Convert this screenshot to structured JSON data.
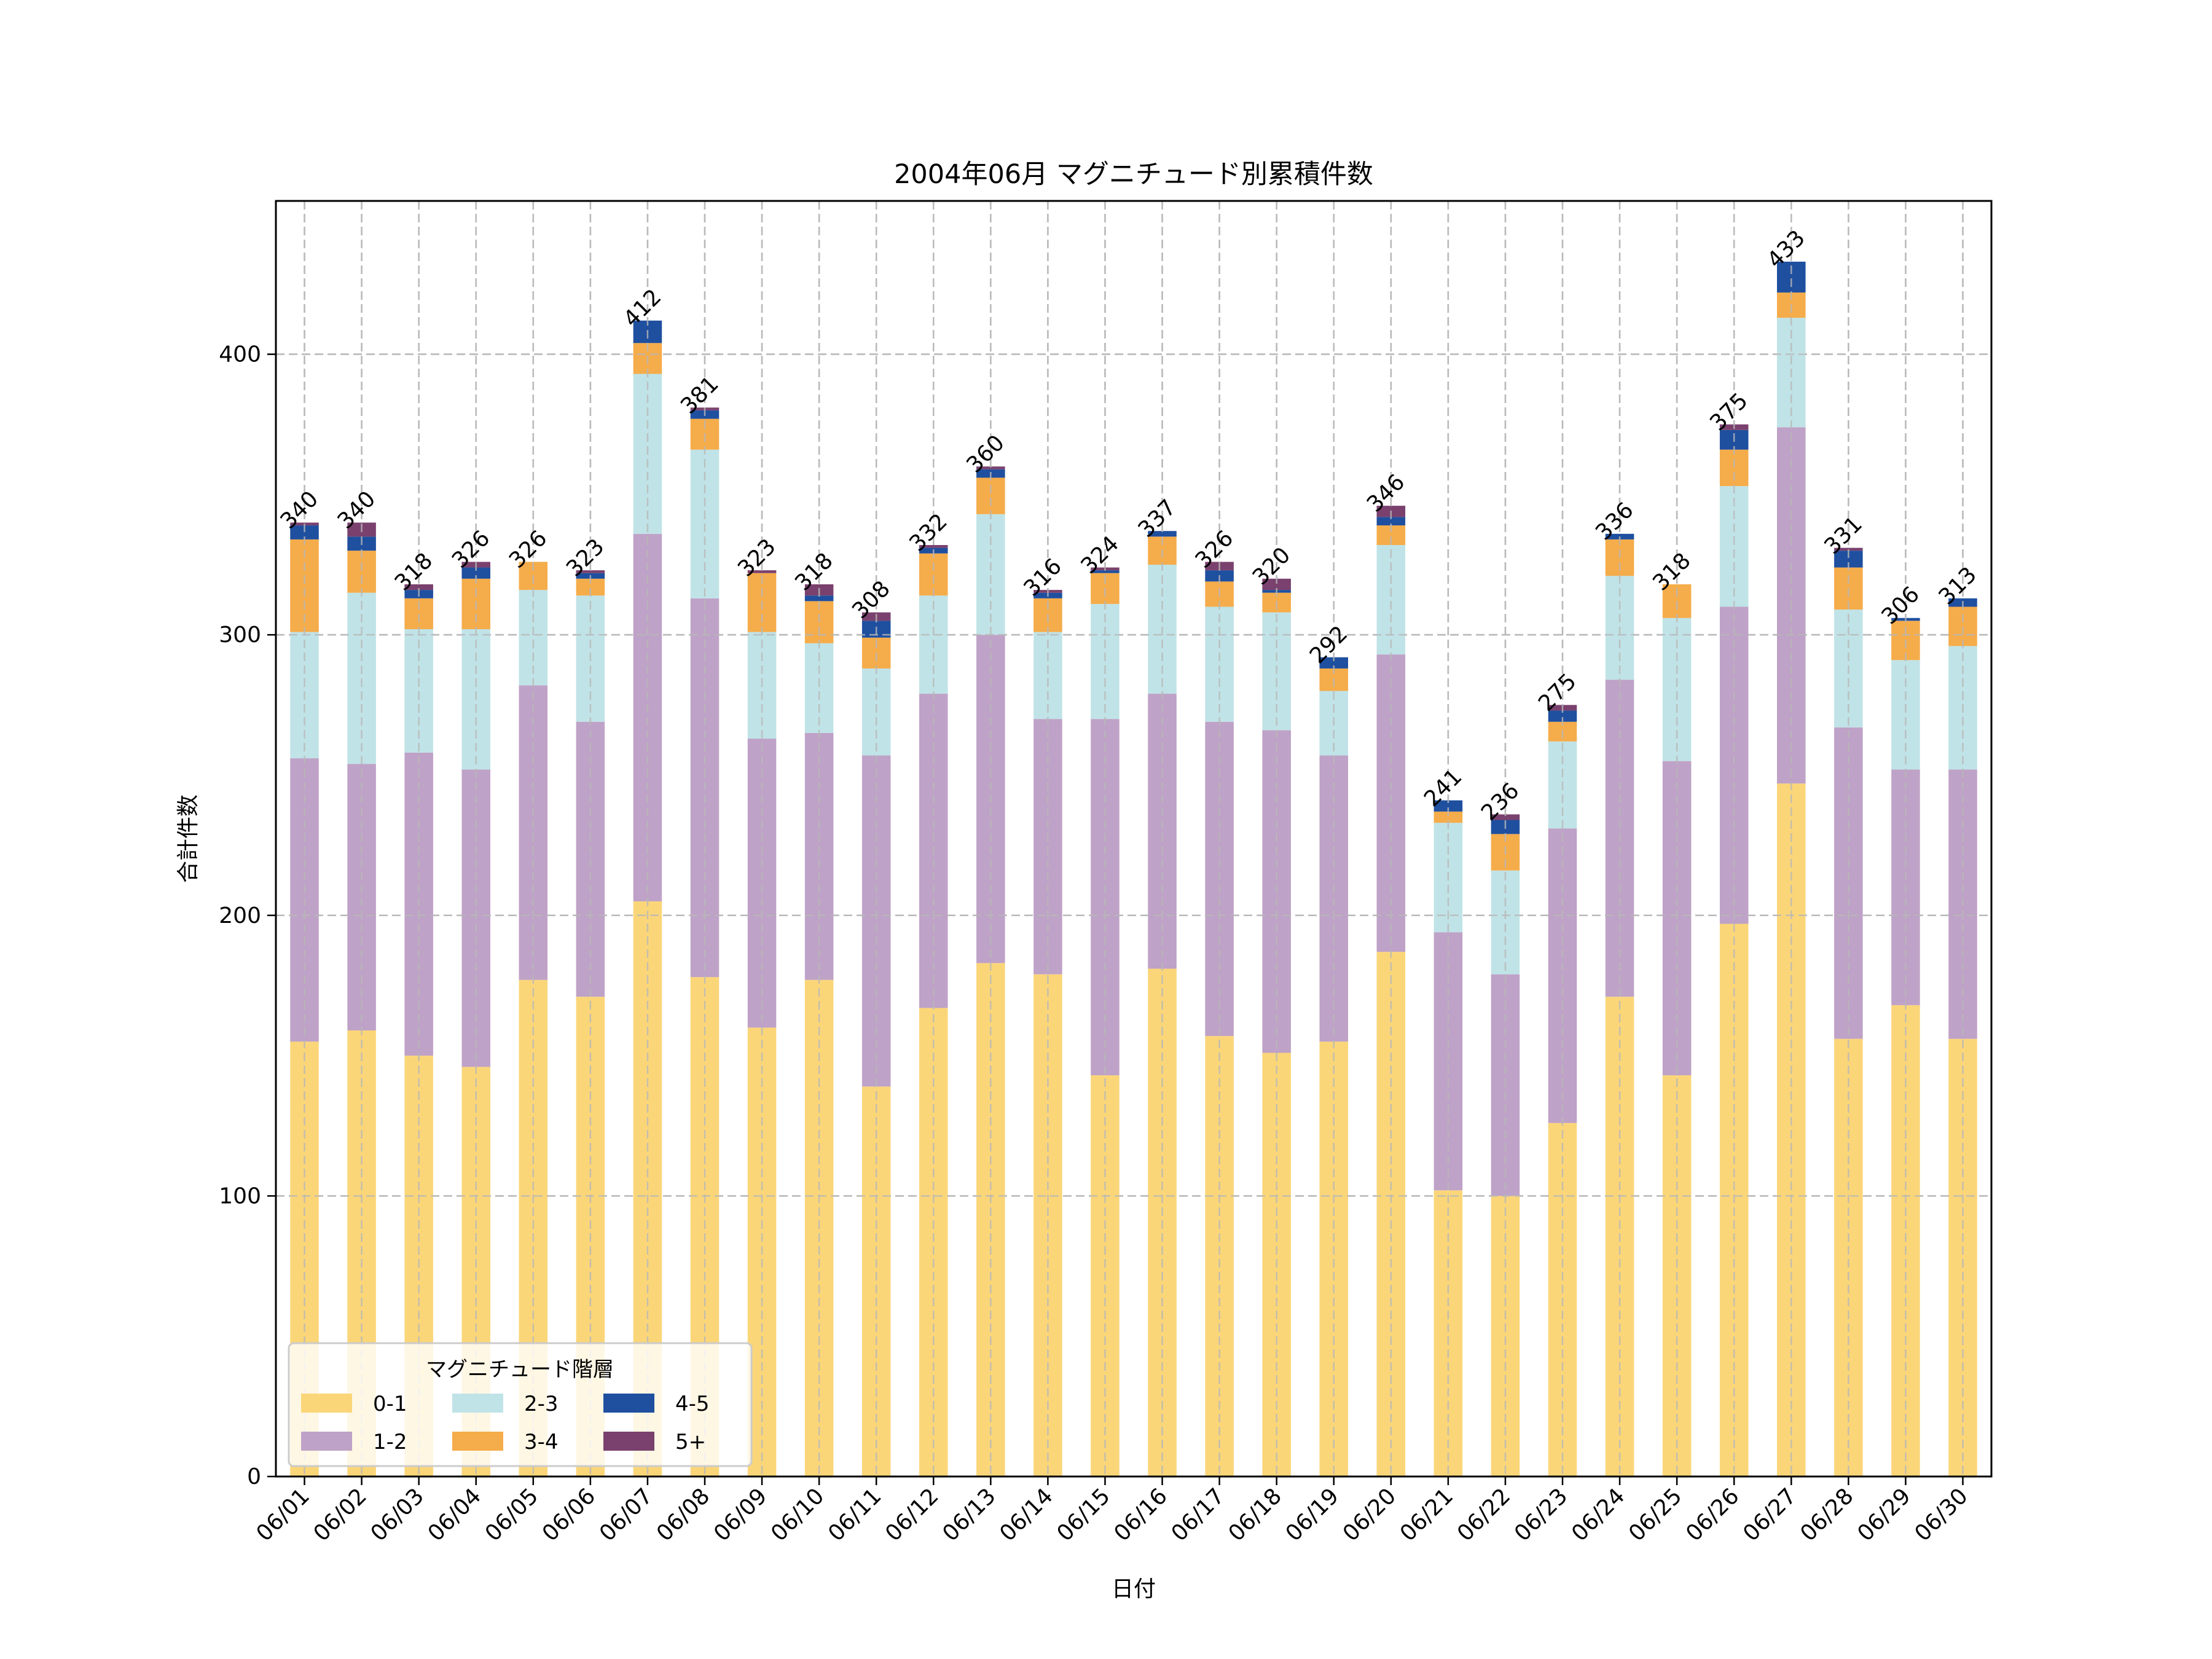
{
  "chart_data": {
    "type": "bar",
    "stacked": true,
    "title": "2004年06月 マグニチュード別累積件数",
    "xlabel": "日付",
    "ylabel": "合計件数",
    "ylim": [
      0,
      454.65
    ],
    "yticks": [
      0,
      100,
      200,
      300,
      400
    ],
    "grid": true,
    "legend": {
      "title": "マグニチュード階層",
      "placement": "lower-left",
      "columns": 3
    },
    "categories": [
      "06/01",
      "06/02",
      "06/03",
      "06/04",
      "06/05",
      "06/06",
      "06/07",
      "06/08",
      "06/09",
      "06/10",
      "06/11",
      "06/12",
      "06/13",
      "06/14",
      "06/15",
      "06/16",
      "06/17",
      "06/18",
      "06/19",
      "06/20",
      "06/21",
      "06/22",
      "06/23",
      "06/24",
      "06/25",
      "06/26",
      "06/27",
      "06/28",
      "06/29",
      "06/30"
    ],
    "series": [
      {
        "name": "0-1",
        "color": "#FBD679",
        "values": [
          155,
          159,
          150,
          146,
          177,
          171,
          205,
          178,
          160,
          177,
          139,
          167,
          183,
          179,
          143,
          181,
          157,
          151,
          155,
          187,
          102,
          100,
          126,
          171,
          143,
          197,
          247,
          156,
          168,
          156
        ]
      },
      {
        "name": "1-2",
        "color": "#BFA2C7",
        "values": [
          101,
          95,
          108,
          106,
          105,
          98,
          131,
          135,
          103,
          88,
          118,
          112,
          117,
          91,
          127,
          98,
          112,
          115,
          102,
          106,
          92,
          79,
          105,
          113,
          112,
          113,
          127,
          111,
          84,
          96
        ]
      },
      {
        "name": "2-3",
        "color": "#C0E3E7",
        "values": [
          45,
          61,
          44,
          50,
          34,
          45,
          57,
          53,
          38,
          32,
          31,
          35,
          43,
          31,
          41,
          46,
          41,
          42,
          23,
          39,
          39,
          37,
          31,
          37,
          51,
          43,
          39,
          42,
          39,
          44
        ]
      },
      {
        "name": "3-4",
        "color": "#F5AC4A",
        "values": [
          33,
          15,
          11,
          18,
          10,
          6,
          11,
          11,
          21,
          15,
          11,
          15,
          13,
          12,
          11,
          10,
          9,
          7,
          8,
          7,
          4,
          13,
          7,
          13,
          12,
          13,
          9,
          15,
          14,
          14
        ]
      },
      {
        "name": "4-5",
        "color": "#1F4F9F",
        "values": [
          5,
          5,
          3,
          4,
          0,
          2,
          8,
          3,
          0,
          2,
          6,
          2,
          3,
          2,
          1,
          2,
          4,
          1,
          4,
          3,
          4,
          5,
          4,
          2,
          0,
          7,
          11,
          6,
          1,
          3
        ]
      },
      {
        "name": "5+",
        "color": "#7A416E",
        "values": [
          1,
          5,
          2,
          2,
          0,
          1,
          0,
          1,
          1,
          4,
          3,
          1,
          1,
          1,
          1,
          0,
          3,
          4,
          0,
          4,
          0,
          2,
          2,
          0,
          0,
          2,
          0,
          1,
          0,
          0
        ]
      }
    ],
    "totals": [
      340,
      340,
      318,
      326,
      326,
      323,
      412,
      381,
      323,
      318,
      308,
      332,
      360,
      316,
      324,
      337,
      326,
      320,
      292,
      346,
      241,
      236,
      275,
      336,
      318,
      375,
      433,
      331,
      306,
      313
    ]
  }
}
